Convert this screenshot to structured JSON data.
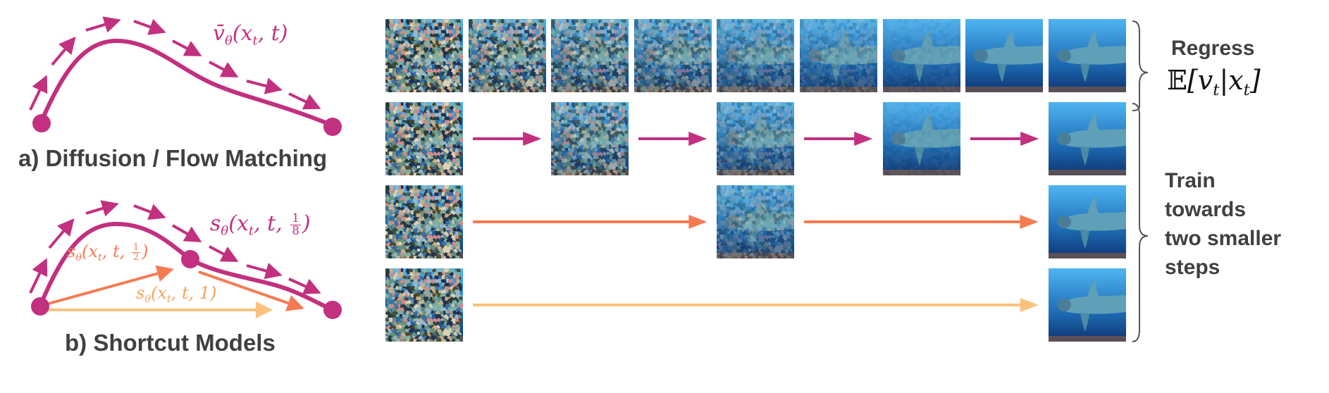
{
  "colors": {
    "flow": "#C2307F",
    "half": "#F47B52",
    "full": "#FDC17F",
    "text": "#404040"
  },
  "panel_a": {
    "title": "a) Diffusion / Flow Matching",
    "label": {
      "fn": "v̄",
      "sub": "θ",
      "open": "(x",
      "argsub": "t",
      "rest": ", t)"
    }
  },
  "panel_b": {
    "title": "b) Shortcut Models",
    "label_eighth": {
      "fn": "s",
      "sub": "θ",
      "open": "(x",
      "argsub": "t",
      "rest": ", t, ",
      "num": "1",
      "den": "8",
      "close": ")"
    },
    "label_half": {
      "fn": "s",
      "sub": "θ",
      "open": "(x",
      "argsub": "t",
      "rest": ", t, ",
      "num": "1",
      "den": "2",
      "close": ")"
    },
    "label_one": {
      "fn": "s",
      "sub": "θ",
      "open": "(x",
      "argsub": "t",
      "rest": ", t, 1)"
    }
  },
  "right": {
    "regress": "Regress",
    "expectation": {
      "E": "𝔼",
      "open": "[v",
      "sub1": "t",
      "mid": "|x",
      "sub2": "t",
      "close": "]"
    },
    "train_lines": [
      "Train",
      "towards",
      "two smaller",
      "steps"
    ]
  },
  "grid": {
    "rows": [
      {
        "columns": [
          0,
          1,
          2,
          3,
          4,
          5,
          6,
          7,
          8
        ],
        "arrow": "none"
      },
      {
        "columns": [
          0,
          2,
          4,
          6,
          8
        ],
        "arrow": "flow"
      },
      {
        "columns": [
          0,
          4,
          8
        ],
        "arrow": "half"
      },
      {
        "columns": [
          0,
          8
        ],
        "arrow": "full"
      }
    ]
  }
}
